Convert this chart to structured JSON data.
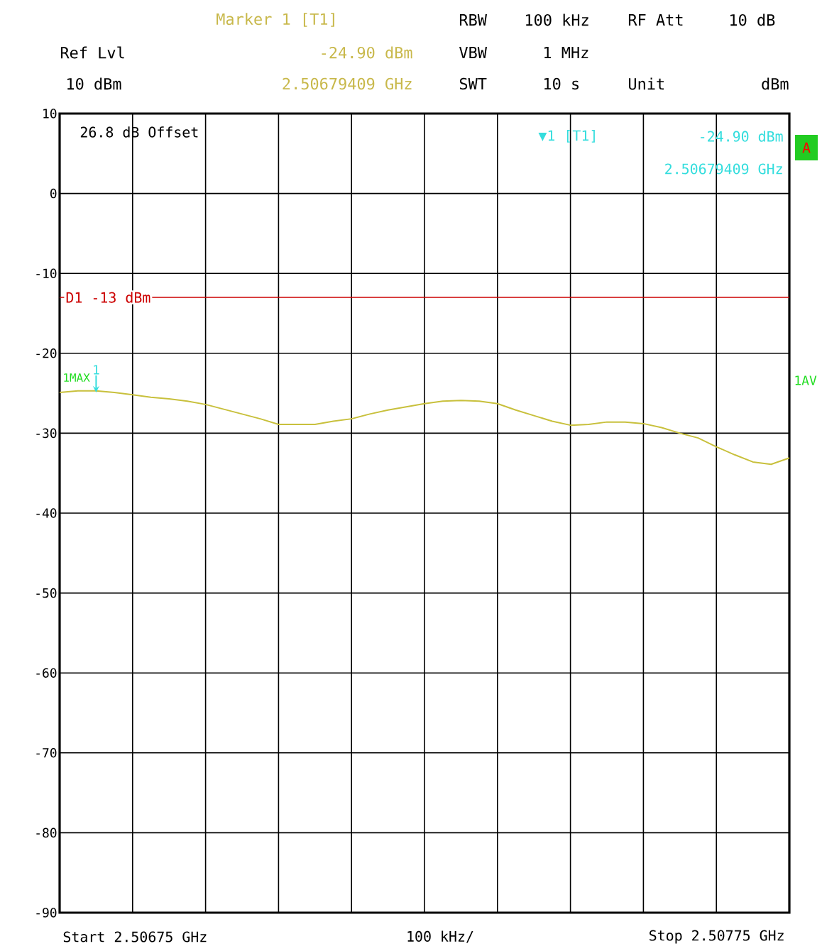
{
  "chart_data": {
    "type": "line",
    "categories": [
      null,
      null,
      null,
      null,
      null,
      null,
      null,
      null,
      null,
      null,
      null,
      null,
      null,
      null,
      null,
      null,
      null,
      null,
      null,
      null,
      null,
      null,
      null,
      null,
      null,
      null,
      null,
      null,
      null,
      null,
      null,
      null,
      null,
      null,
      null,
      null,
      null,
      null,
      null,
      null,
      null
    ],
    "series": [
      {
        "color": "#c8c03c",
        "values": [
          -24.9,
          -24.7,
          -24.7,
          -24.9,
          -25.2,
          -25.5,
          -25.7,
          -26.0,
          -26.4,
          -27.0,
          -27.6,
          -28.2,
          -28.9,
          -28.9,
          -28.9,
          -28.5,
          -28.2,
          -27.6,
          -27.1,
          -26.7,
          -26.3,
          -26.0,
          -25.9,
          -26.0,
          -26.3,
          -27.1,
          -27.8,
          -28.5,
          -29.0,
          -28.9,
          -28.6,
          -28.6,
          -28.8,
          -29.3,
          -30.0,
          -30.6,
          -31.7,
          -32.7,
          -33.6,
          -33.9,
          -33.1
        ]
      }
    ],
    "ylim": [
      -90,
      10
    ],
    "yticks": [
      10,
      0,
      -10,
      -20,
      -30,
      -40,
      -50,
      -60,
      -70,
      -80,
      -90
    ],
    "grid": true,
    "marker": "none",
    "line_style": "solid",
    "ref_lines": [
      {
        "axis": "y",
        "value": -13,
        "label": "D1 -13 dBm",
        "color": "#cc0000"
      }
    ],
    "annotations": [
      "Marker 1 [T1]",
      "-24.90 dBm",
      "2.50679409 GHz",
      "Ref Lvl",
      "10 dBm",
      "RBW",
      "100 kHz",
      "RF Att",
      "10 dB",
      "VBW",
      "1 MHz",
      "SWT",
      "10 s",
      "Unit",
      "dBm",
      "26.8 dB Offset",
      "▼1 [T1]",
      "-24.90 dBm",
      "2.50679409 GHz",
      "A",
      "1MAX",
      "1AV",
      "Start 2.50675 GHz",
      "100 kHz/",
      "Stop 2.50775 GHz",
      {
        "text": "1",
        "y": -24.9
      }
    ]
  }
}
